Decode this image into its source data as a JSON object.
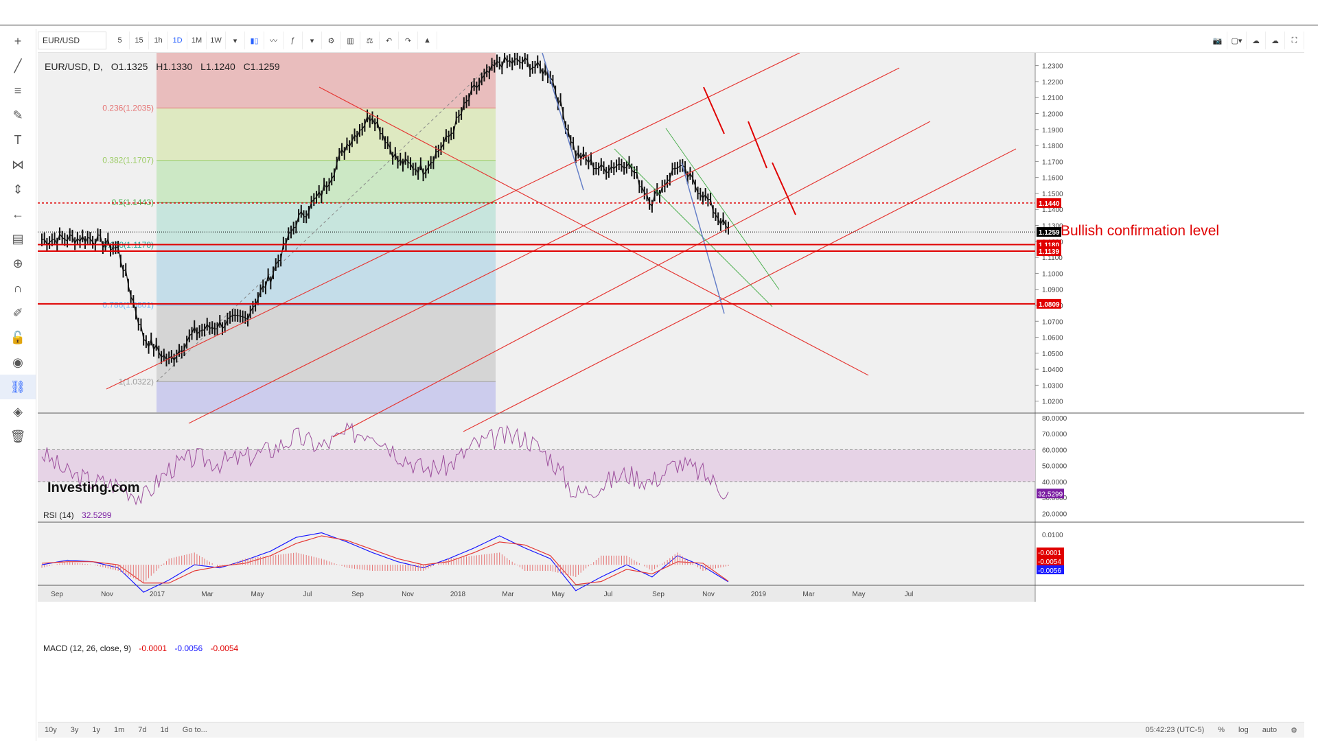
{
  "toolbar": {
    "symbol": "EUR/USD",
    "intervals": [
      "5",
      "15",
      "1h",
      "1D",
      "1M",
      "1W"
    ],
    "active_interval": "1D"
  },
  "legend": {
    "title": "EUR/USD, D,",
    "open": "O1.1325",
    "high": "H1.1330",
    "low": "L1.1240",
    "close": "C1.1259"
  },
  "rsi_legend": {
    "label": "RSI (14)",
    "value": "32.5299"
  },
  "macd_legend": {
    "label": "MACD (12, 26, close, 9)",
    "v1": "-0.0001",
    "v2": "-0.0056",
    "v3": "-0.0054"
  },
  "watermark": "Investing.com",
  "annotation": "Bullish confirmation level",
  "fib_levels": [
    {
      "label": "0.236(1.2035)",
      "price": 1.2035,
      "color": "#e57373"
    },
    {
      "label": "0.382(1.1707)",
      "price": 1.1707,
      "color": "#9ccc65"
    },
    {
      "label": "0.5(1.1443)",
      "price": 1.1443,
      "color": "#4caf50"
    },
    {
      "label": "0.618(1.1178)",
      "price": 1.1178,
      "color": "#26a69a"
    },
    {
      "label": "0.786(1.0801)",
      "price": 1.0801,
      "color": "#64b5f6"
    },
    {
      "label": "1(1.0322)",
      "price": 1.0322,
      "color": "#9e9e9e"
    }
  ],
  "price_labels": [
    {
      "text": "1.1440",
      "price": 1.144,
      "bg": "#e00000"
    },
    {
      "text": "1.1259",
      "price": 1.1259,
      "bg": "#000000"
    },
    {
      "text": "1.1180",
      "price": 1.118,
      "bg": "#e00000"
    },
    {
      "text": "1.1139",
      "price": 1.1139,
      "bg": "#e00000"
    },
    {
      "text": "1.0809",
      "price": 1.0809,
      "bg": "#e00000"
    }
  ],
  "rsi_label": {
    "text": "32.5299",
    "bg": "#7b1fa2"
  },
  "macd_labels": [
    {
      "text": "-0.0001",
      "bg": "#e00000"
    },
    {
      "text": "-0.0054",
      "bg": "#e00000"
    },
    {
      "text": "-0.0056",
      "bg": "#1a1aff"
    }
  ],
  "bottom_ranges": [
    "10y",
    "3y",
    "1y",
    "1m",
    "7d",
    "1d",
    "Go to..."
  ],
  "bottom_right": [
    "05:42:23 (UTC-5)",
    "%",
    "log",
    "auto"
  ],
  "chart_data": {
    "type": "line",
    "title": "EUR/USD, D,",
    "x": [
      "2016-08",
      "2016-09",
      "2016-10",
      "2016-11",
      "2016-12",
      "2017-01",
      "2017-02",
      "2017-03",
      "2017-04",
      "2017-05",
      "2017-06",
      "2017-07",
      "2017-08",
      "2017-09",
      "2017-10",
      "2017-11",
      "2017-12",
      "2018-01",
      "2018-02",
      "2018-03",
      "2018-04",
      "2018-05",
      "2018-06",
      "2018-07",
      "2018-08",
      "2018-09",
      "2018-10",
      "2018-11"
    ],
    "series": [
      {
        "values": [
          1.121,
          1.122,
          1.122,
          1.115,
          1.06,
          1.045,
          1.063,
          1.068,
          1.072,
          1.098,
          1.132,
          1.15,
          1.181,
          1.2,
          1.17,
          1.165,
          1.185,
          1.215,
          1.232,
          1.232,
          1.225,
          1.175,
          1.165,
          1.17,
          1.145,
          1.168,
          1.15,
          1.126
        ]
      }
    ],
    "x_tick_labels": [
      "Sep",
      "Nov",
      "2017",
      "Mar",
      "May",
      "Jul",
      "Sep",
      "Nov",
      "2018",
      "Mar",
      "May",
      "Jul",
      "Sep",
      "Nov",
      "2019",
      "Mar",
      "May",
      "Jul"
    ],
    "y_ticks": [
      1.02,
      1.03,
      1.04,
      1.05,
      1.06,
      1.07,
      1.08,
      1.09,
      1.1,
      1.11,
      1.12,
      1.13,
      1.14,
      1.15,
      1.16,
      1.17,
      1.18,
      1.19,
      1.2,
      1.21,
      1.22,
      1.23
    ],
    "ylim": [
      1.013,
      1.238
    ],
    "horizontal_levels": [
      1.144,
      1.118,
      1.1139,
      1.0809
    ],
    "rsi": {
      "ylim": [
        15,
        83
      ],
      "y_ticks": [
        20,
        30,
        40,
        50,
        60,
        70,
        80
      ],
      "band": [
        40,
        60
      ],
      "values": [
        58,
        45,
        40,
        38,
        30,
        48,
        55,
        52,
        55,
        60,
        68,
        62,
        70,
        72,
        58,
        48,
        50,
        63,
        68,
        68,
        55,
        32,
        38,
        45,
        40,
        52,
        45,
        32.53
      ]
    },
    "macd": {
      "ylim": [
        -0.0065,
        0.014
      ],
      "y_ticks": [
        0.0,
        0.01
      ],
      "macd": [
        0.0,
        0.0015,
        0.001,
        -0.001,
        -0.009,
        -0.005,
        0.0,
        -0.001,
        0.0015,
        0.0045,
        0.009,
        0.0105,
        0.0075,
        0.004,
        0.001,
        -0.001,
        0.002,
        0.0055,
        0.0095,
        0.0055,
        0.002,
        -0.0085,
        -0.004,
        0.0,
        -0.004,
        0.003,
        -0.0005,
        -0.0056
      ],
      "signal": [
        0.0005,
        0.001,
        0.001,
        0.0,
        -0.006,
        -0.006,
        -0.002,
        -0.0005,
        0.0005,
        0.003,
        0.007,
        0.0095,
        0.008,
        0.005,
        0.002,
        0.0,
        0.001,
        0.004,
        0.0075,
        0.0065,
        0.003,
        -0.0065,
        -0.0055,
        -0.0015,
        -0.003,
        0.001,
        0.0005,
        -0.0054
      ]
    }
  }
}
